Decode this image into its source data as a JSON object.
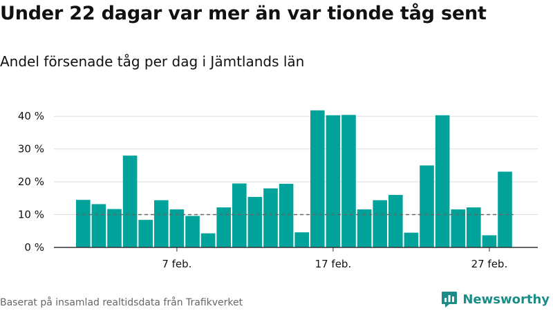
{
  "colors": {
    "bar": "#00a29a",
    "brand": "#1b8c87",
    "grid": "#dddddd",
    "axis": "#333333",
    "reference": "#666666",
    "text": "#111111",
    "muted": "#666666"
  },
  "header": {
    "title": "Under 22 dagar var mer än var tionde tåg sent",
    "subtitle": "Andel försenade tåg per dag i Jämtlands län"
  },
  "footer": {
    "source": "Baserat på insamlad realtidsdata från Trafikverket",
    "brand": "Newsworthy",
    "brand_icon": "newsworthy-logo-icon"
  },
  "chart_data": {
    "type": "bar",
    "title": "Under 22 dagar var mer än var tionde tåg sent",
    "subtitle": "Andel försenade tåg per dag i Jämtlands län",
    "xlabel": "",
    "ylabel": "",
    "x_start": "2020-02-01",
    "categories": [
      "1 feb.",
      "2 feb.",
      "3 feb.",
      "4 feb.",
      "5 feb.",
      "6 feb.",
      "7 feb.",
      "8 feb.",
      "9 feb.",
      "10 feb.",
      "11 feb.",
      "12 feb.",
      "13 feb.",
      "14 feb.",
      "15 feb.",
      "16 feb.",
      "17 feb.",
      "18 feb.",
      "19 feb.",
      "20 feb.",
      "21 feb.",
      "22 feb.",
      "23 feb.",
      "24 feb.",
      "25 feb.",
      "26 feb.",
      "27 feb.",
      "28 feb."
    ],
    "x_tick_labels": [
      "7 feb.",
      "17 feb.",
      "27 feb."
    ],
    "x_tick_positions": [
      6,
      16,
      26
    ],
    "values": [
      14.5,
      13.2,
      11.7,
      28.0,
      8.4,
      14.4,
      11.6,
      9.6,
      4.3,
      12.2,
      19.5,
      15.4,
      18.0,
      19.4,
      4.6,
      41.8,
      40.3,
      40.4,
      11.6,
      14.4,
      16.0,
      4.5,
      25.0,
      40.3,
      11.6,
      12.2,
      3.7,
      23.1
    ],
    "y_ticks": [
      0,
      10,
      20,
      30,
      40
    ],
    "y_tick_labels": [
      "0 %",
      "10 %",
      "20 %",
      "30 %",
      "40 %"
    ],
    "ylim": [
      0,
      42
    ],
    "reference_line": 10,
    "grid": true,
    "legend": "none"
  }
}
